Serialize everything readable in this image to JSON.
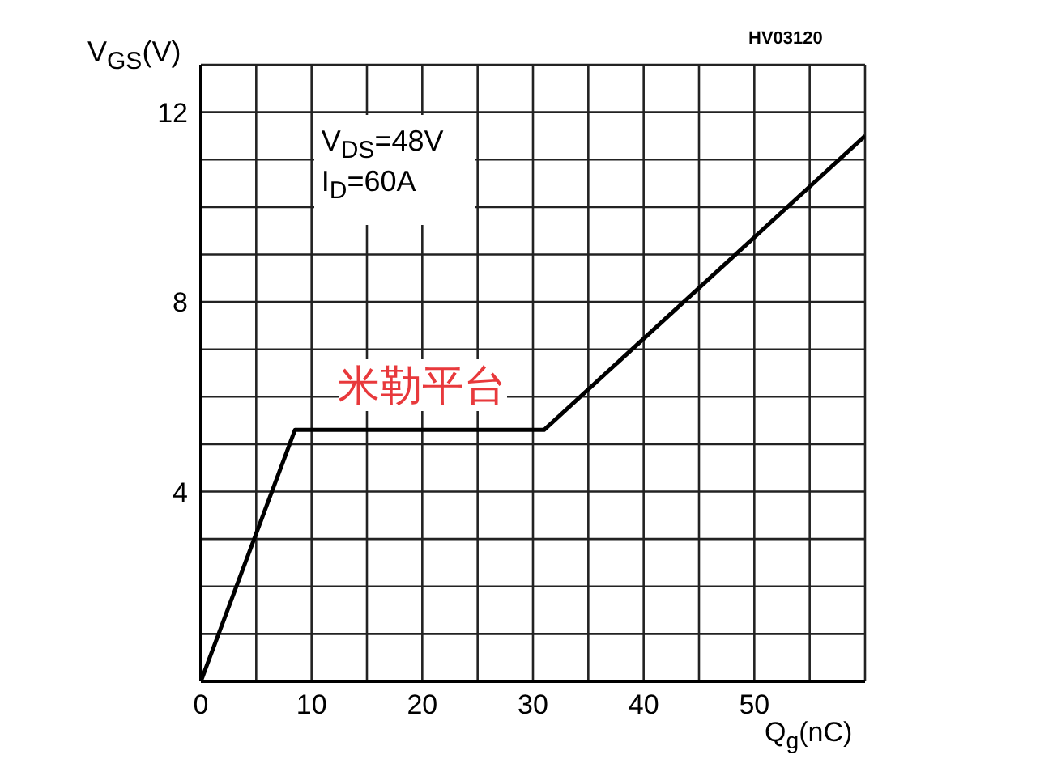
{
  "chart_data": {
    "type": "line",
    "xlabel": "Q$_{g}$(nC)",
    "ylabel": "V$_{GS}$(V)",
    "annotations": [
      "HV03120",
      "V$_{DS}$=48V\nI$_{D}$=60A",
      {
        "text": "米勒平台",
        "x": 20,
        "y": 5.3
      }
    ],
    "series": [
      {
        "color": "#000000",
        "x": [
          0,
          8.5,
          31,
          60
        ],
        "values": [
          0,
          5.3,
          5.3,
          11.5
        ]
      }
    ],
    "xlim": [
      0,
      60
    ],
    "ylim": [
      0,
      13
    ],
    "xticks": [
      0,
      {
        "value": 5,
        "label": null
      },
      10,
      {
        "value": 15,
        "label": null
      },
      20,
      {
        "value": 25,
        "label": null
      },
      30,
      {
        "value": 35,
        "label": null
      },
      40,
      {
        "value": 45,
        "label": null
      },
      50,
      {
        "value": 55,
        "label": null
      },
      {
        "value": 60,
        "label": null
      }
    ],
    "yticks": [
      {
        "value": 0,
        "label": null
      },
      {
        "value": 1,
        "label": null
      },
      {
        "value": 2,
        "label": null
      },
      {
        "value": 3,
        "label": null
      },
      4,
      {
        "value": 5,
        "label": null
      },
      {
        "value": 6,
        "label": null
      },
      {
        "value": 7,
        "label": null
      },
      8,
      {
        "value": 9,
        "label": null
      },
      {
        "value": 10,
        "label": null
      },
      {
        "value": 11,
        "label": null
      },
      12,
      {
        "value": 13,
        "label": null
      }
    ],
    "grid": true,
    "legend": false,
    "marker": "none",
    "line_style": "solid"
  }
}
